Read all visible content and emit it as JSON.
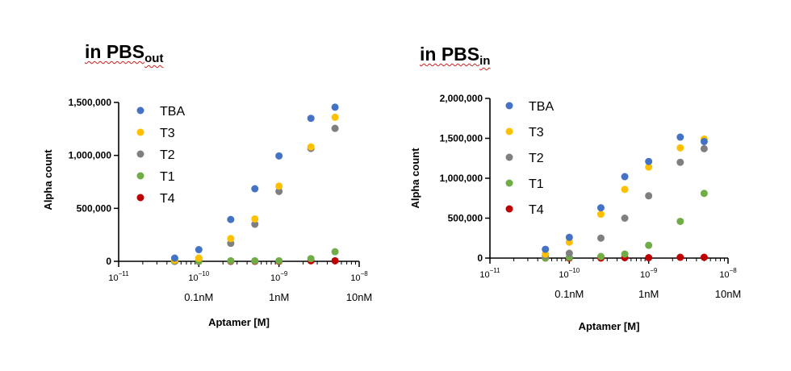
{
  "chart_data": [
    {
      "type": "scatter",
      "title": "in PBS",
      "title_subscript": "out",
      "xlabel": "Aptamer [M]",
      "ylabel": "Alpha count",
      "x_scale": "log",
      "xlim": [
        1e-11,
        1e-08
      ],
      "ylim": [
        0,
        1500000
      ],
      "y_ticks": [
        0,
        500000,
        1000000,
        1500000
      ],
      "y_tick_labels": [
        "0",
        "500,000",
        "1,000,000",
        "1,500,000"
      ],
      "x_tick_labels": [
        {
          "base": "10",
          "exp": "−11"
        },
        {
          "base": "10",
          "exp": "−10"
        },
        {
          "base": "10",
          "exp": "−9"
        },
        {
          "base": "10",
          "exp": "−8"
        }
      ],
      "x_annotations": [
        "0.1nM",
        "1nM",
        "10nM"
      ],
      "legend_position": "top-left",
      "x": [
        5e-11,
        1e-10,
        2.5e-10,
        5e-10,
        1e-09,
        2.5e-09,
        5e-09
      ],
      "series": [
        {
          "name": "TBA",
          "color": "#4472c4",
          "values": [
            30000,
            110000,
            395000,
            685000,
            995000,
            1350000,
            1455000
          ]
        },
        {
          "name": "T3",
          "color": "#ffc000",
          "values": [
            10000,
            30000,
            215000,
            400000,
            710000,
            1080000,
            1360000
          ]
        },
        {
          "name": "T2",
          "color": "#7f7f7f",
          "values": [
            5000,
            30000,
            170000,
            350000,
            660000,
            1065000,
            1255000
          ]
        },
        {
          "name": "T1",
          "color": "#70ad47",
          "values": [
            0,
            0,
            5000,
            5000,
            5000,
            25000,
            90000
          ]
        },
        {
          "name": "T4",
          "color": "#c00000",
          "values": [
            0,
            0,
            0,
            0,
            0,
            5000,
            5000
          ]
        }
      ]
    },
    {
      "type": "scatter",
      "title": "in PBS",
      "title_subscript": "in",
      "xlabel": "Aptamer [M]",
      "ylabel": "Alpha count",
      "x_scale": "log",
      "xlim": [
        1e-11,
        1e-08
      ],
      "ylim": [
        0,
        2000000
      ],
      "y_ticks": [
        0,
        500000,
        1000000,
        1500000,
        2000000
      ],
      "y_tick_labels": [
        "0",
        "500,000",
        "1,000,000",
        "1,500,000",
        "2,000,000"
      ],
      "x_tick_labels": [
        {
          "base": "10",
          "exp": "−11"
        },
        {
          "base": "10",
          "exp": "−10"
        },
        {
          "base": "10",
          "exp": "−9"
        },
        {
          "base": "10",
          "exp": "−8"
        }
      ],
      "x_annotations": [
        "0.1nM",
        "1nM",
        "10nM"
      ],
      "legend_position": "top-left",
      "x": [
        5e-11,
        1e-10,
        2.5e-10,
        5e-10,
        1e-09,
        2.5e-09,
        5e-09
      ],
      "series": [
        {
          "name": "TBA",
          "color": "#4472c4",
          "values": [
            110000,
            260000,
            630000,
            1020000,
            1210000,
            1515000,
            1460000
          ]
        },
        {
          "name": "T3",
          "color": "#ffc000",
          "values": [
            50000,
            200000,
            550000,
            860000,
            1140000,
            1380000,
            1490000
          ]
        },
        {
          "name": "T2",
          "color": "#7f7f7f",
          "values": [
            30000,
            60000,
            250000,
            500000,
            780000,
            1200000,
            1370000
          ]
        },
        {
          "name": "T1",
          "color": "#70ad47",
          "values": [
            0,
            10000,
            20000,
            50000,
            160000,
            460000,
            810000
          ]
        },
        {
          "name": "T4",
          "color": "#c00000",
          "values": [
            0,
            0,
            0,
            5000,
            5000,
            10000,
            10000
          ]
        }
      ]
    }
  ]
}
